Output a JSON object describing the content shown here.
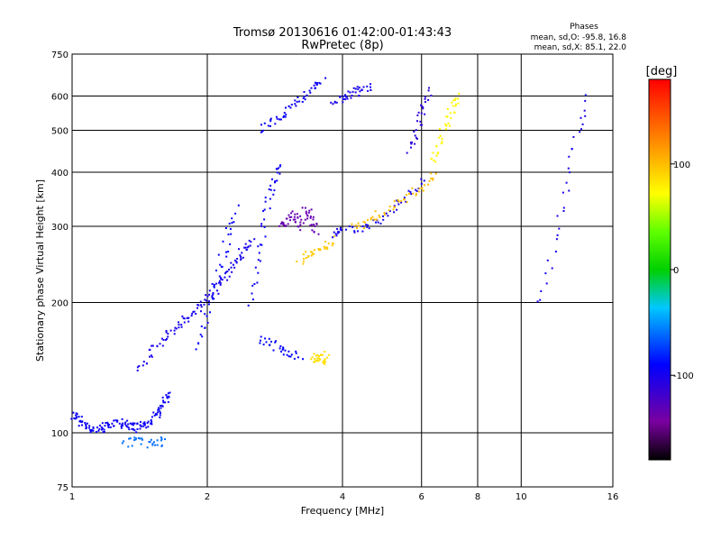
{
  "chart_data": {
    "type": "scatter",
    "title": "Tromsø 20130616 01:42:00-01:43:43",
    "subtitle": "RwPretec (8p)",
    "phases": {
      "header": "Phases",
      "o_line": "mean, sd,O: -95.8, 16.8",
      "x_line": "mean, sd,X:  85.1, 22.0"
    },
    "xlabel": "Frequency [MHz]",
    "ylabel": "Stationary phase Virtual Height [km]",
    "xscale": "log",
    "yscale": "log",
    "xlim": [
      1,
      16
    ],
    "ylim": [
      75,
      750
    ],
    "xticks": [
      1,
      2,
      4,
      6,
      8,
      10,
      16
    ],
    "yticks": [
      75,
      100,
      200,
      300,
      400,
      500,
      600,
      750
    ],
    "grid_x": [
      2,
      4,
      6,
      8,
      10
    ],
    "grid_y": [
      100,
      200,
      300,
      400,
      500,
      600
    ],
    "colorbar": {
      "label": "[deg]",
      "ticks": [
        100,
        0,
        -100
      ],
      "range": [
        -180,
        180
      ]
    },
    "series": [
      {
        "x": [
          1.0,
          1.03,
          1.06,
          1.1,
          1.15,
          1.2,
          1.25,
          1.3,
          1.35,
          1.4,
          1.45,
          1.5,
          1.55,
          1.6,
          1.65
        ],
        "y": [
          111,
          108,
          104,
          102,
          103,
          104,
          106,
          105,
          103,
          104,
          106,
          108,
          112,
          118,
          125
        ],
        "phase": -95,
        "seed": 1
      },
      {
        "x": [
          1.4,
          1.5,
          1.6,
          1.7,
          1.8,
          1.9,
          2.0,
          2.1,
          2.2,
          2.3,
          2.4,
          2.5
        ],
        "y": [
          140,
          155,
          165,
          175,
          185,
          195,
          205,
          220,
          235,
          250,
          265,
          280
        ],
        "phase": -100,
        "seed": 2
      },
      {
        "x": [
          1.9,
          2.0,
          2.1,
          2.2,
          2.3
        ],
        "y": [
          160,
          190,
          230,
          280,
          330
        ],
        "phase": -90,
        "seed": 3
      },
      {
        "x": [
          2.5,
          2.6,
          2.7,
          2.8,
          2.9
        ],
        "y": [
          200,
          260,
          330,
          380,
          420
        ],
        "phase": -95,
        "seed": 4
      },
      {
        "x": [
          2.6,
          2.8,
          3.0,
          3.2,
          3.4,
          3.6
        ],
        "y": [
          500,
          530,
          560,
          590,
          620,
          650
        ],
        "phase": -95,
        "seed": 5
      },
      {
        "x": [
          3.8,
          4.0,
          4.2,
          4.4,
          4.6
        ],
        "y": [
          580,
          600,
          610,
          620,
          630
        ],
        "phase": -100,
        "seed": 6
      },
      {
        "x": [
          2.9,
          3.0,
          3.1,
          3.2,
          3.3,
          3.4,
          3.5
        ],
        "y": [
          300,
          310,
          320,
          300,
          330,
          310,
          290
        ],
        "phase": -135,
        "seed": 7
      },
      {
        "x": [
          3.8,
          4.0,
          4.5,
          5.0,
          5.5,
          6.0
        ],
        "y": [
          290,
          295,
          300,
          320,
          350,
          390
        ],
        "phase": -100,
        "seed": 8
      },
      {
        "x": [
          5.6,
          5.8,
          6.0,
          6.2
        ],
        "y": [
          450,
          500,
          560,
          620
        ],
        "phase": -110,
        "seed": 9
      },
      {
        "x": [
          3.2,
          3.4,
          3.6,
          3.8
        ],
        "y": [
          250,
          260,
          270,
          280
        ],
        "phase": 95,
        "seed": 10
      },
      {
        "x": [
          4.2,
          4.6,
          5.0,
          5.5,
          6.0,
          6.4
        ],
        "y": [
          300,
          310,
          330,
          350,
          370,
          400
        ],
        "phase": 100,
        "seed": 11
      },
      {
        "x": [
          6.3,
          6.5,
          6.8,
          7.0,
          7.2
        ],
        "y": [
          420,
          470,
          520,
          560,
          600
        ],
        "phase": 75,
        "seed": 12
      },
      {
        "x": [
          2.6,
          2.8,
          3.0,
          3.2
        ],
        "y": [
          165,
          160,
          155,
          150
        ],
        "phase": -90,
        "seed": 13
      },
      {
        "x": [
          3.4,
          3.5,
          3.6,
          3.7
        ],
        "y": [
          150,
          148,
          152,
          145
        ],
        "phase": 85,
        "seed": 14
      },
      {
        "x": [
          1.3,
          1.4,
          1.5,
          1.6
        ],
        "y": [
          95,
          96,
          94,
          97
        ],
        "phase": -60,
        "seed": 15
      },
      {
        "x": [
          11.0,
          12.0,
          13.0,
          14.0
        ],
        "y": [
          200,
          300,
          450,
          600
        ],
        "phase": -100,
        "seed": 16
      }
    ]
  }
}
